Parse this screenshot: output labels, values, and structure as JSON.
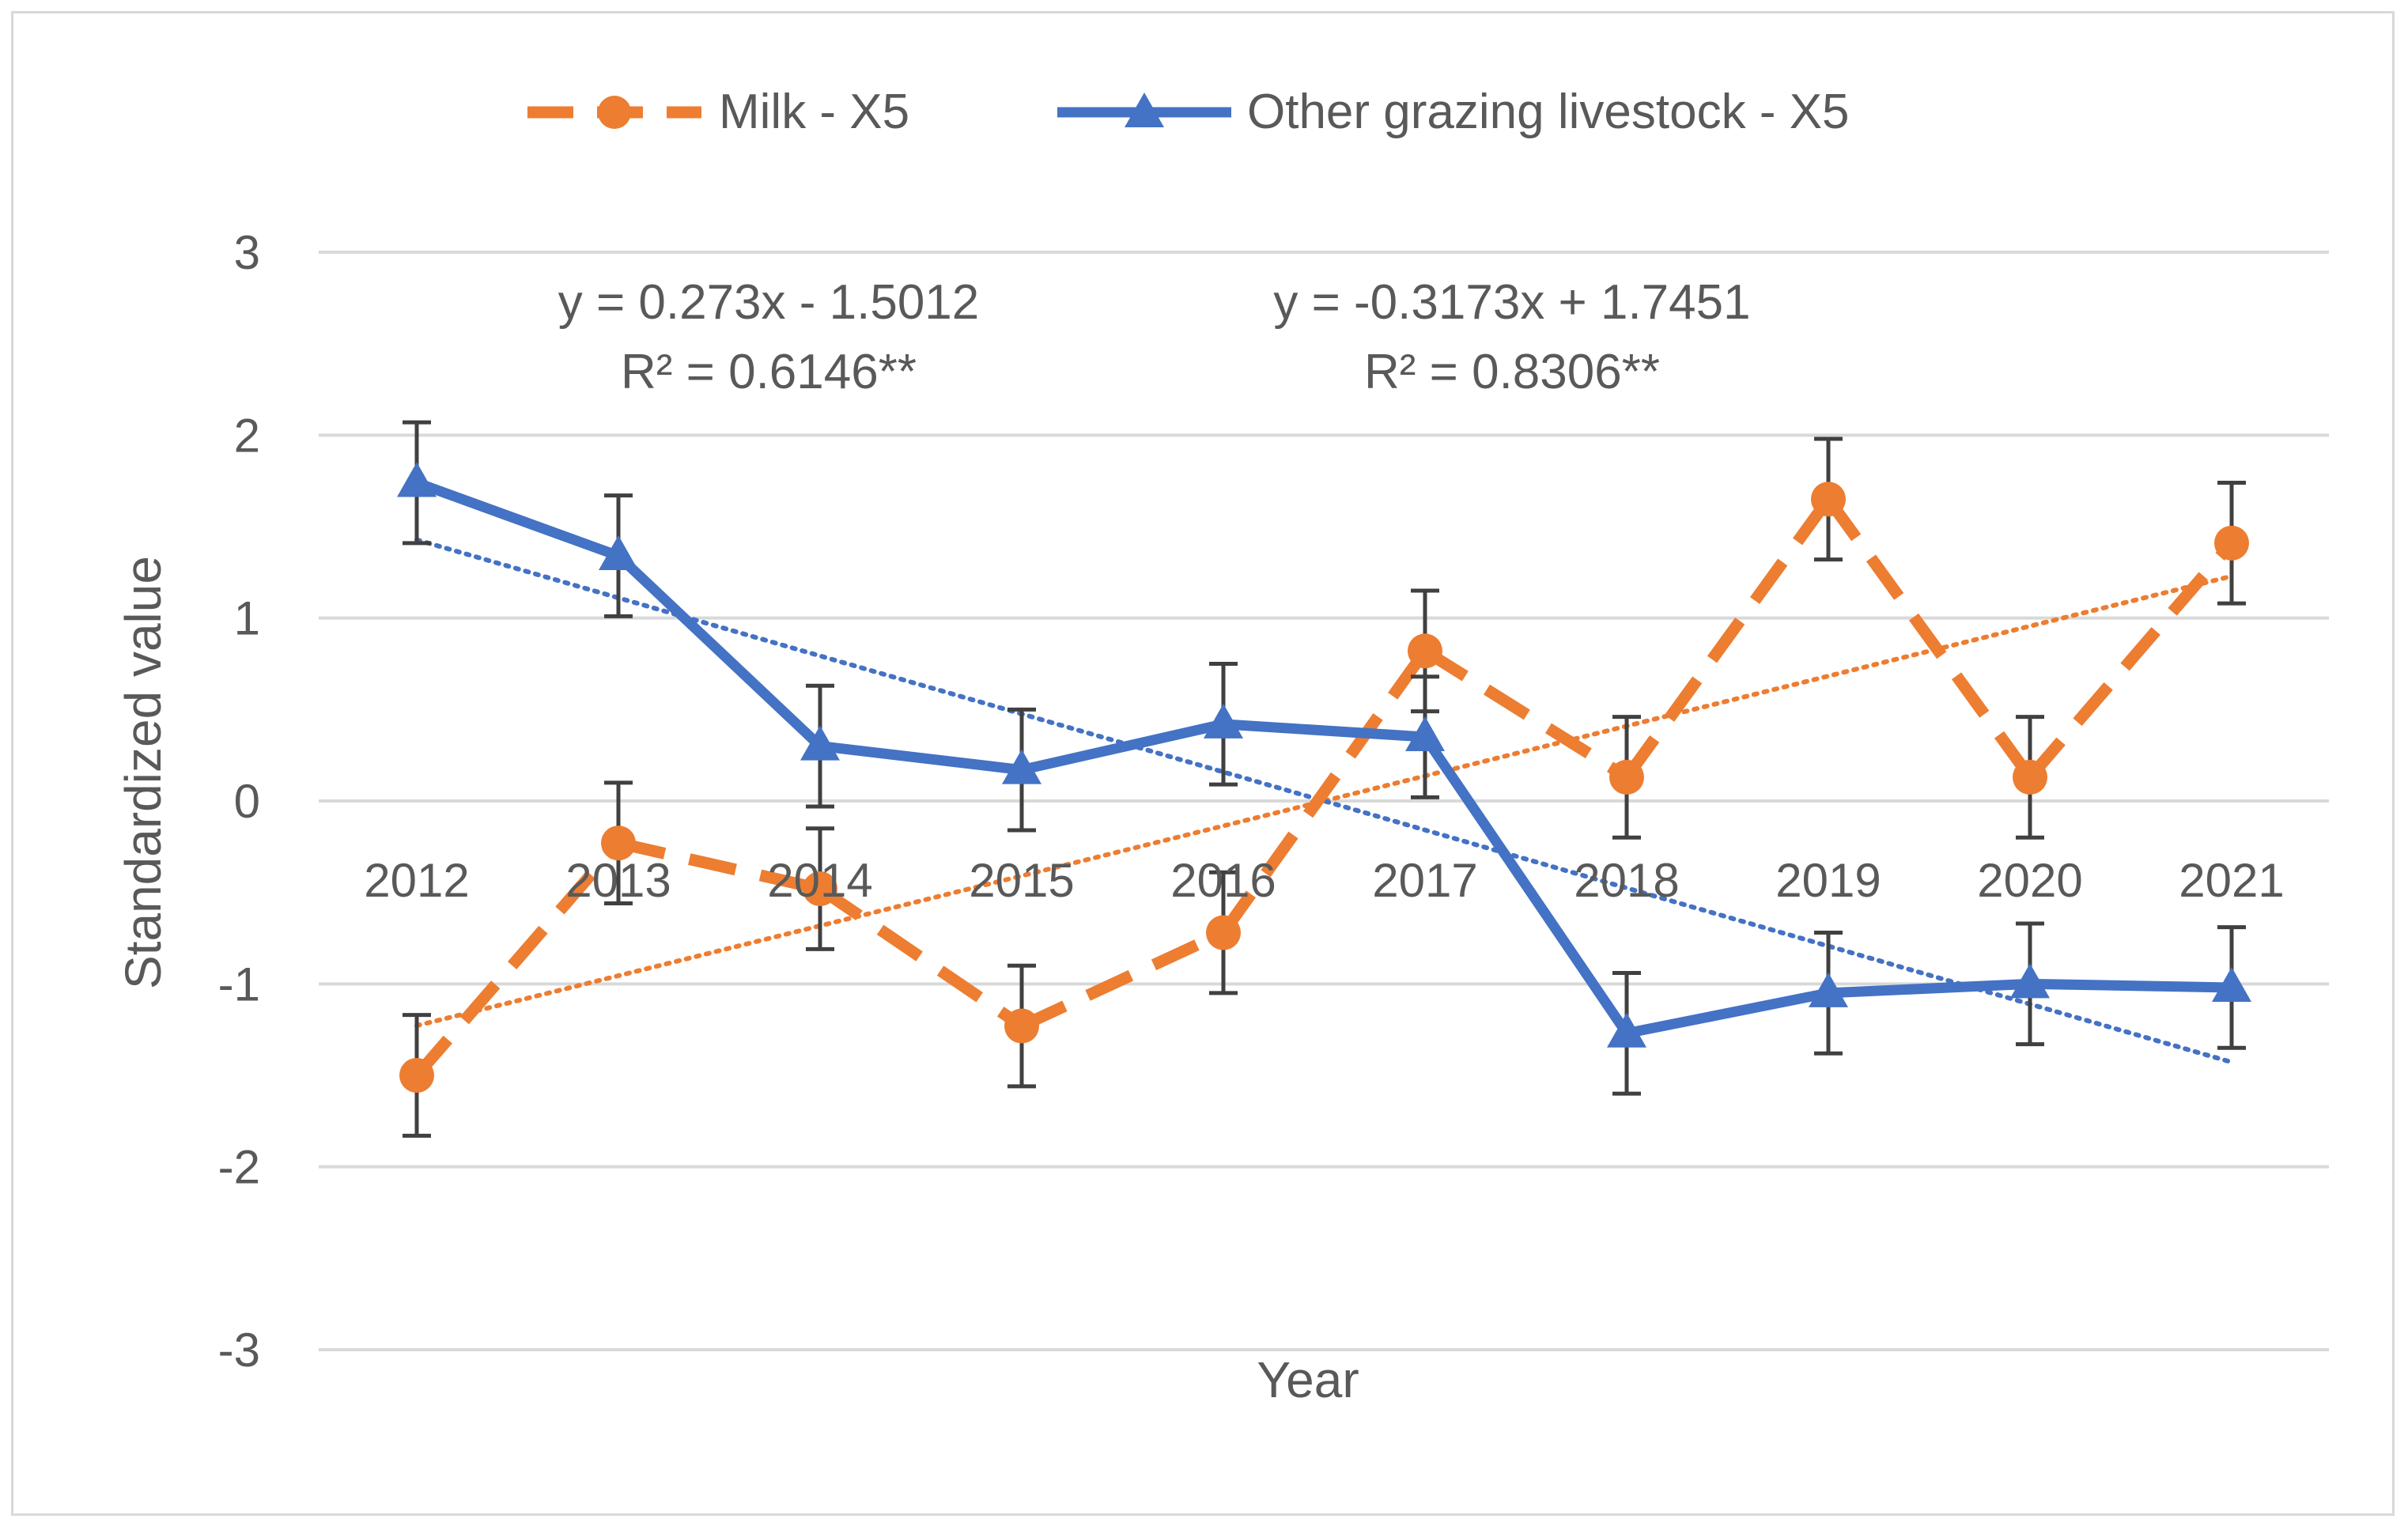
{
  "chart_data": {
    "type": "line",
    "title": "",
    "xlabel": "Year",
    "ylabel": "Standardized value",
    "categories": [
      "2012",
      "2013",
      "2014",
      "2015",
      "2016",
      "2017",
      "2018",
      "2019",
      "2020",
      "2021"
    ],
    "ylim": [
      -3,
      3
    ],
    "yticks": [
      3,
      2,
      1,
      0,
      -1,
      -2,
      -3
    ],
    "grid": true,
    "legend_position": "top",
    "series": [
      {
        "name": "Milk -  X5",
        "values": [
          -1.5,
          -0.23,
          -0.48,
          -1.23,
          -0.72,
          0.82,
          0.13,
          1.65,
          0.13,
          1.41
        ],
        "error": 0.33,
        "color": "#ed7d31",
        "line_style": "dashed",
        "marker": "circle",
        "trendline": {
          "slope": 0.273,
          "intercept": -1.5012,
          "equation": "y = 0.273x - 1.5012",
          "r2": "R² = 0.6146**"
        }
      },
      {
        "name": "Other grazing livestock -  X5",
        "values": [
          1.74,
          1.34,
          0.3,
          0.17,
          0.42,
          0.35,
          -1.27,
          -1.05,
          -1.0,
          -1.02
        ],
        "error": 0.33,
        "color": "#4472c4",
        "line_style": "solid",
        "marker": "triangle",
        "trendline": {
          "slope": -0.3173,
          "intercept": 1.7451,
          "equation": "y = -0.3173x + 1.7451",
          "r2": "R² = 0.8306**"
        }
      }
    ]
  }
}
